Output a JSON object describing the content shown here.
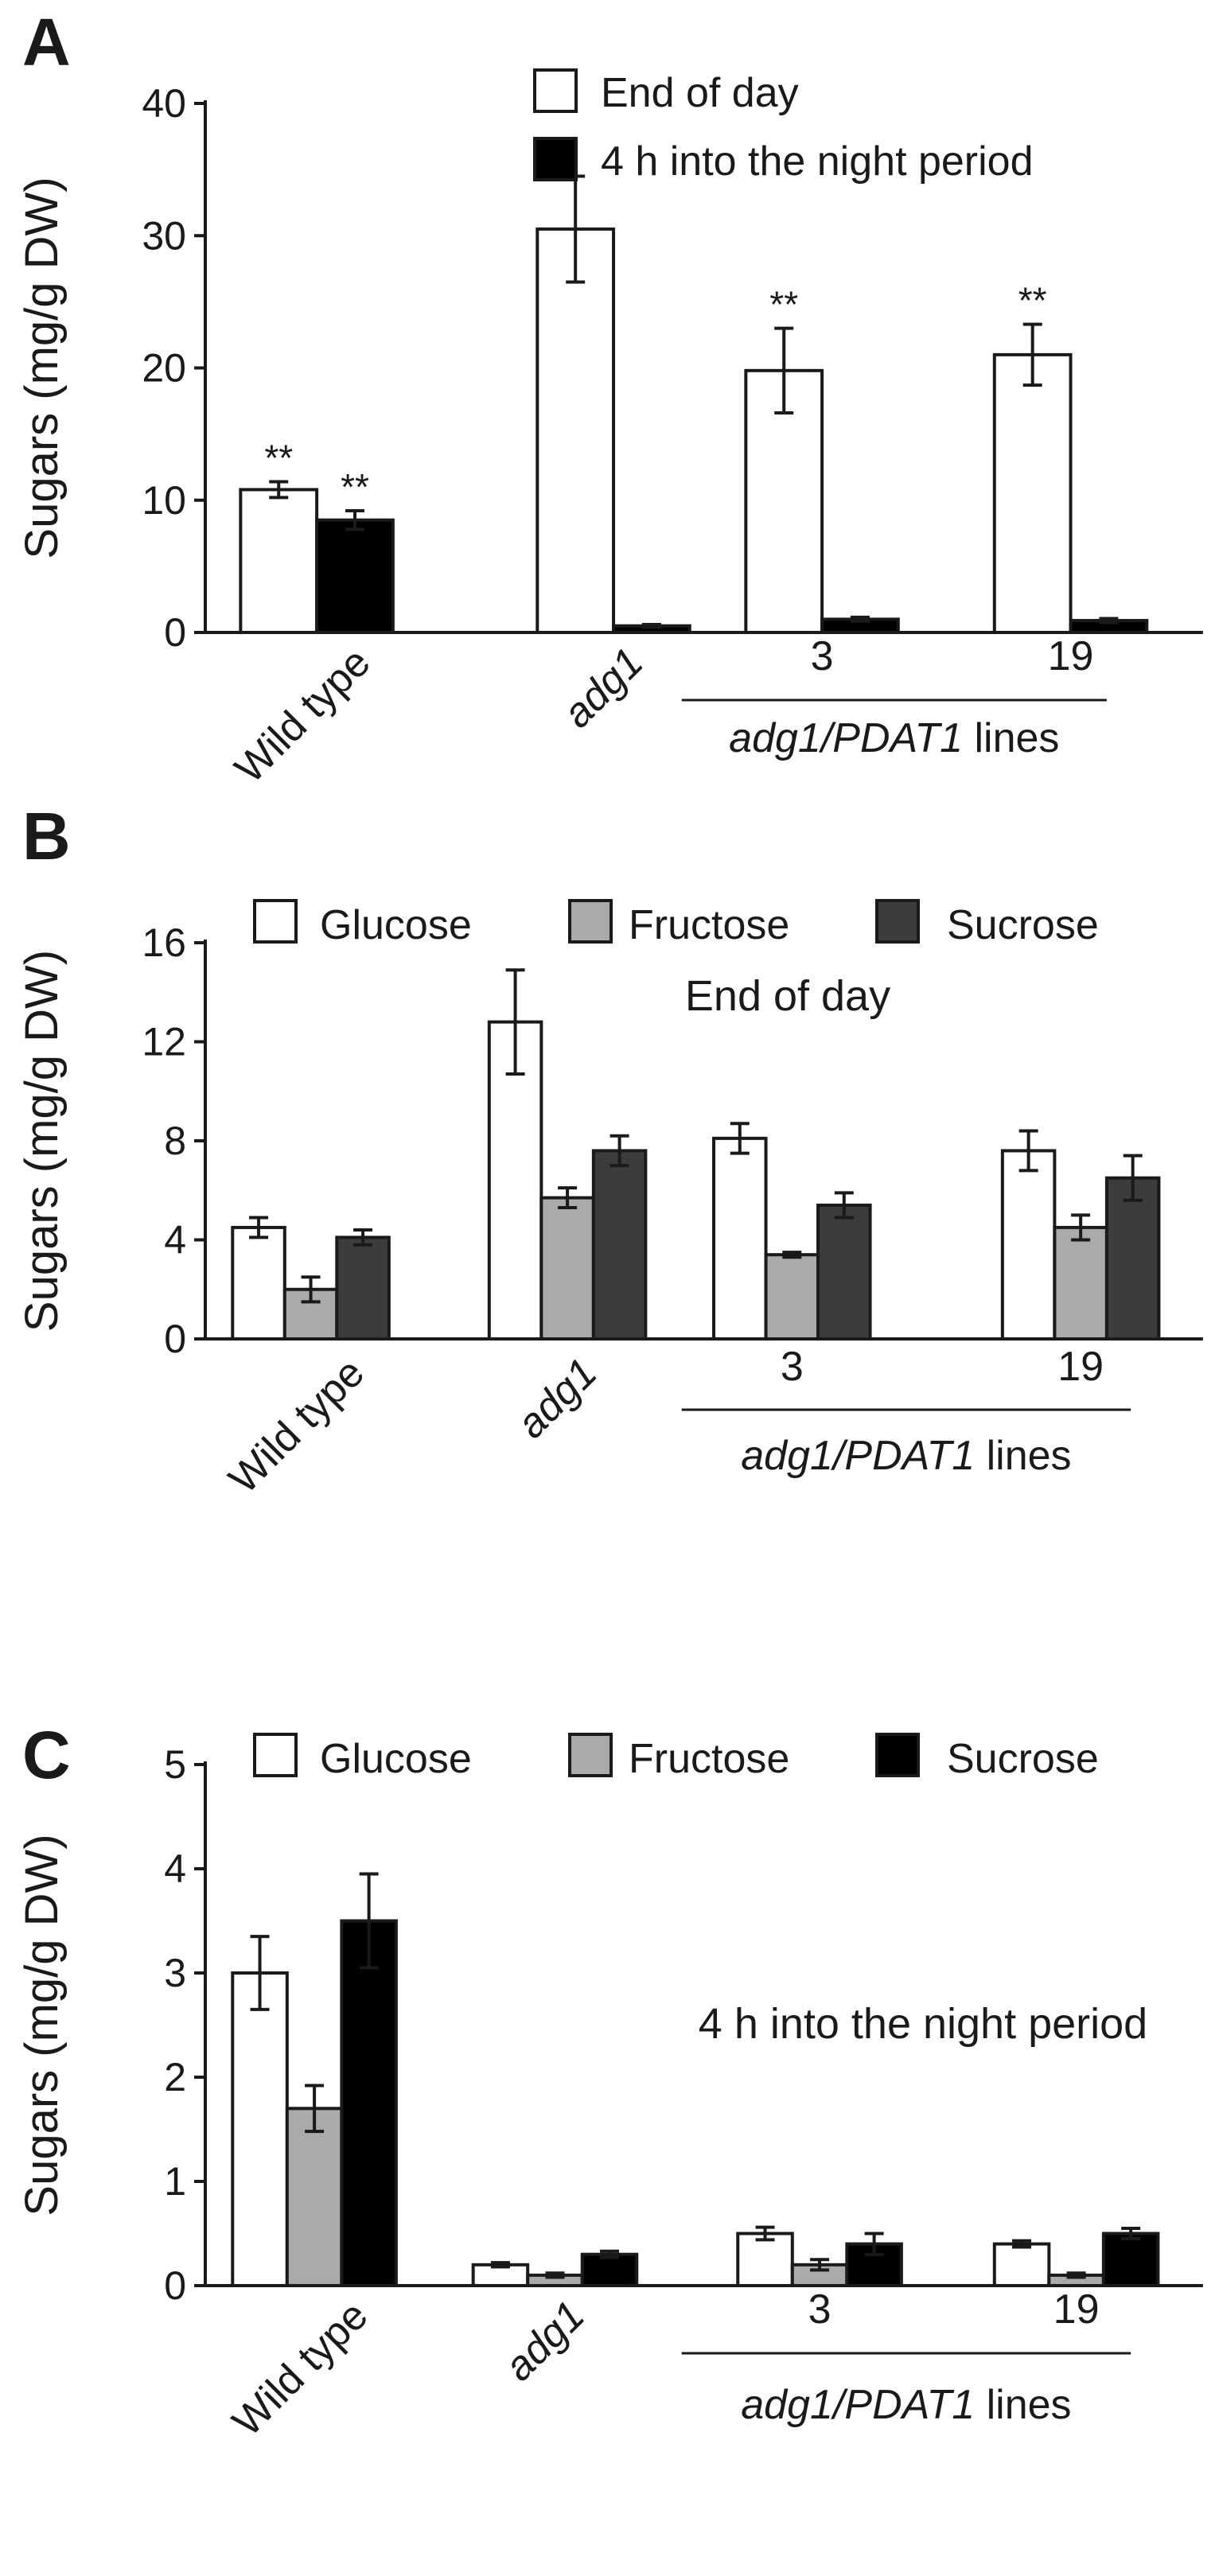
{
  "chart_data": [
    {
      "panel": "A",
      "type": "bar",
      "ylabel": "Sugars (mg/g DW)",
      "ylim": [
        0,
        40
      ],
      "yticks": [
        0,
        10,
        20,
        30,
        40
      ],
      "categories": [
        "Wild type",
        "adg1",
        "3",
        "19"
      ],
      "group_label": "adg1/PDAT1 lines",
      "legend_position": "top-center",
      "series": [
        {
          "name": "End of day",
          "color": "#ffffff",
          "values": [
            10.8,
            30.5,
            19.8,
            21.0
          ],
          "errors": [
            0.6,
            4.0,
            3.2,
            2.3
          ]
        },
        {
          "name": "4 h into the night period",
          "color": "#000000",
          "values": [
            8.5,
            0.5,
            1.0,
            0.9
          ],
          "errors": [
            0.7,
            0.1,
            0.15,
            0.15
          ]
        }
      ],
      "significance": [
        {
          "series": 0,
          "category": 0,
          "text": "**"
        },
        {
          "series": 1,
          "category": 0,
          "text": "**"
        },
        {
          "series": 0,
          "category": 2,
          "text": "**"
        },
        {
          "series": 0,
          "category": 3,
          "text": "**"
        }
      ]
    },
    {
      "panel": "B",
      "type": "bar",
      "ylabel": "Sugars (mg/g DW)",
      "ylim": [
        0,
        16
      ],
      "yticks": [
        0,
        4,
        8,
        12,
        16
      ],
      "categories": [
        "Wild type",
        "adg1",
        "3",
        "19"
      ],
      "group_label": "adg1/PDAT1 lines",
      "annotation": "End of day",
      "legend_position": "top-center",
      "series": [
        {
          "name": "Glucose",
          "color": "#ffffff",
          "values": [
            4.5,
            12.8,
            8.1,
            7.6
          ],
          "errors": [
            0.4,
            2.1,
            0.6,
            0.8
          ]
        },
        {
          "name": "Fructose",
          "color": "#aaaaaa",
          "values": [
            2.0,
            5.7,
            3.4,
            4.5
          ],
          "errors": [
            0.5,
            0.4,
            0.1,
            0.5
          ]
        },
        {
          "name": "Sucrose",
          "color": "#3c3c3c",
          "values": [
            4.1,
            7.6,
            5.4,
            6.5
          ],
          "errors": [
            0.3,
            0.6,
            0.5,
            0.9
          ]
        }
      ]
    },
    {
      "panel": "C",
      "type": "bar",
      "ylabel": "Sugars (mg/g DW)",
      "ylim": [
        0,
        5
      ],
      "yticks": [
        0,
        1,
        2,
        3,
        4,
        5
      ],
      "categories": [
        "Wild type",
        "adg1",
        "3",
        "19"
      ],
      "group_label": "adg1/PDAT1 lines",
      "annotation": "4 h into the night period",
      "legend_position": "top-center",
      "series": [
        {
          "name": "Glucose",
          "color": "#ffffff",
          "values": [
            3.0,
            0.2,
            0.5,
            0.4
          ],
          "errors": [
            0.35,
            0.02,
            0.06,
            0.03
          ]
        },
        {
          "name": "Fructose",
          "color": "#aaaaaa",
          "values": [
            1.7,
            0.1,
            0.2,
            0.1
          ],
          "errors": [
            0.22,
            0.02,
            0.05,
            0.02
          ]
        },
        {
          "name": "Sucrose",
          "color": "#000000",
          "values": [
            3.5,
            0.3,
            0.4,
            0.5
          ],
          "errors": [
            0.45,
            0.03,
            0.1,
            0.05
          ]
        }
      ]
    }
  ]
}
